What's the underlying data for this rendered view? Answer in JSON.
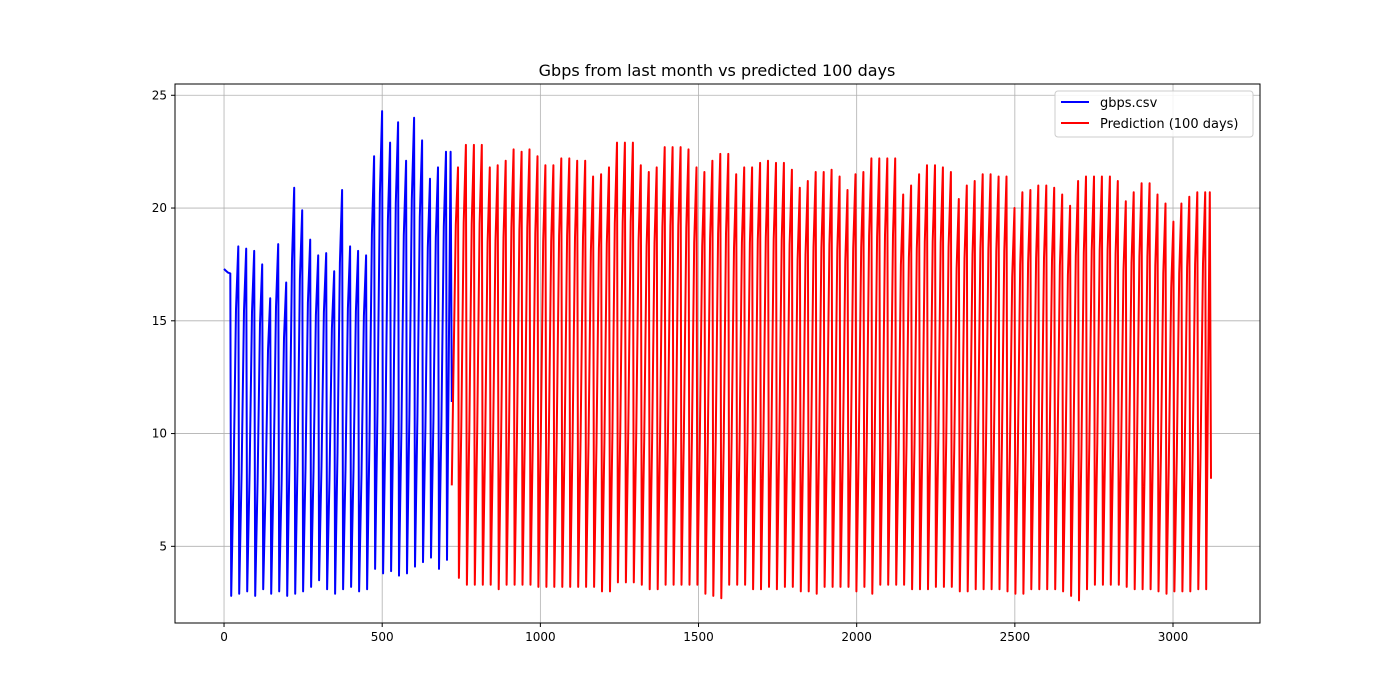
{
  "chart_data": {
    "type": "line",
    "title": "Gbps from last month vs predicted 100 days",
    "xlabel": "",
    "ylabel": "",
    "xlim": [
      -155,
      3275
    ],
    "ylim": [
      1.6,
      25.5
    ],
    "x_ticks": [
      0,
      500,
      1000,
      1500,
      2000,
      2500,
      3000
    ],
    "x_tick_labels": [
      "0",
      "500",
      "1000",
      "1500",
      "2000",
      "2500",
      "3000"
    ],
    "y_ticks": [
      5,
      10,
      15,
      20,
      25
    ],
    "y_tick_labels": [
      "5",
      "10",
      "15",
      "20",
      "25"
    ],
    "grid": true,
    "legend_position": "top-right",
    "series": [
      {
        "name": "gbps.csv",
        "color": "#0000ff",
        "x_start": 0,
        "x_end": 720,
        "start_value": 17.3,
        "end_value": 11.4,
        "peaks": [
          17.1,
          18.3,
          18.2,
          18.1,
          17.5,
          16.0,
          18.4,
          16.7,
          20.9,
          19.9,
          18.6,
          17.9,
          18.0,
          17.2,
          20.8,
          18.3,
          18.1,
          17.9,
          22.3,
          24.3,
          22.9,
          23.8,
          22.1,
          24.0,
          23.0,
          21.3,
          21.8,
          22.5
        ],
        "troughs": [
          2.8,
          2.9,
          3.0,
          2.8,
          3.1,
          2.9,
          3.0,
          2.8,
          2.9,
          3.0,
          3.2,
          3.5,
          3.1,
          2.9,
          3.1,
          3.2,
          3.0,
          3.1,
          4.0,
          3.8,
          3.9,
          3.7,
          3.8,
          4.1,
          4.3,
          4.5,
          4.0,
          4.4
        ]
      },
      {
        "name": "Prediction (100 days)",
        "color": "#ff0000",
        "x_start": 720,
        "x_end": 3120,
        "start_value": 7.7,
        "end_value": 8.0,
        "peaks": [
          21.8,
          22.8,
          22.8,
          22.8,
          21.8,
          21.9,
          22.1,
          22.6,
          22.5,
          22.6,
          22.3,
          21.9,
          21.9,
          22.2,
          22.2,
          22.1,
          22.1,
          21.4,
          21.5,
          21.8,
          22.9,
          22.9,
          22.9,
          21.9,
          21.6,
          21.8,
          22.7,
          22.7,
          22.7,
          22.6,
          21.8,
          21.6,
          22.1,
          22.4,
          22.4,
          21.5,
          21.8,
          21.8,
          22.0,
          22.1,
          22.0,
          22.0,
          21.7,
          20.9,
          21.2,
          21.6,
          21.6,
          21.7,
          21.4,
          20.8,
          21.5,
          21.6,
          22.2,
          22.2,
          22.2,
          22.2,
          20.6,
          21.0,
          21.5,
          21.9,
          21.9,
          21.8,
          21.6,
          20.4,
          21.0,
          21.2,
          21.5,
          21.5,
          21.4,
          21.4,
          20.0,
          20.7,
          20.8,
          21.0,
          21.0,
          20.9,
          20.6,
          20.1,
          21.2,
          21.4,
          21.4,
          21.4,
          21.4,
          21.2,
          20.3,
          20.7,
          21.1,
          21.1,
          20.6,
          20.2,
          19.4,
          20.2,
          20.5,
          20.7,
          20.7
        ],
        "troughs": [
          3.6,
          3.3,
          3.3,
          3.3,
          3.3,
          3.1,
          3.3,
          3.3,
          3.3,
          3.3,
          3.2,
          3.2,
          3.2,
          3.2,
          3.2,
          3.2,
          3.2,
          3.2,
          3.0,
          3.0,
          3.4,
          3.4,
          3.4,
          3.3,
          3.1,
          3.1,
          3.3,
          3.3,
          3.3,
          3.3,
          3.3,
          2.9,
          2.8,
          2.7,
          3.3,
          3.3,
          3.3,
          3.1,
          3.1,
          3.2,
          3.1,
          3.2,
          3.2,
          3.0,
          3.0,
          2.9,
          3.2,
          3.2,
          3.2,
          3.2,
          3.0,
          3.2,
          2.9,
          3.3,
          3.3,
          3.3,
          3.3,
          3.1,
          3.1,
          3.1,
          3.2,
          3.2,
          3.2,
          3.0,
          3.0,
          3.1,
          3.1,
          3.1,
          3.1,
          3.0,
          2.9,
          2.9,
          3.1,
          3.1,
          3.1,
          3.1,
          3.0,
          2.8,
          2.6,
          3.1,
          3.3,
          3.3,
          3.3,
          3.3,
          3.2,
          3.1,
          3.1,
          3.1,
          3.0,
          2.9,
          3.0,
          3.0,
          3.0,
          3.1,
          3.1
        ]
      }
    ]
  }
}
